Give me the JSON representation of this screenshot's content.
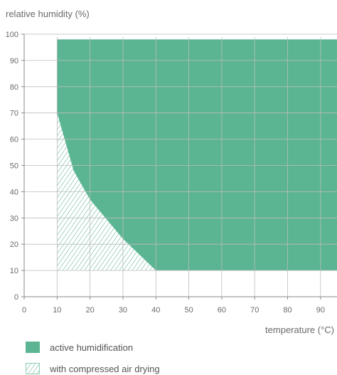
{
  "chart_data": {
    "type": "area",
    "ylabel": "relative humidity (%)",
    "xlabel": "temperature (°C)",
    "xlim": [
      0,
      95
    ],
    "ylim": [
      0,
      100
    ],
    "x_ticks": [
      0,
      10,
      20,
      30,
      40,
      50,
      60,
      70,
      80,
      90
    ],
    "y_ticks": [
      0,
      10,
      20,
      30,
      40,
      50,
      60,
      70,
      80,
      90,
      100
    ],
    "grid": true,
    "series": [
      {
        "name": "active humidification",
        "fill": "solid",
        "color": "#5bb592",
        "polygon": [
          [
            10,
            70
          ],
          [
            15,
            48
          ],
          [
            20,
            37
          ],
          [
            30,
            22
          ],
          [
            40,
            10
          ],
          [
            95,
            10
          ],
          [
            95,
            98
          ],
          [
            10,
            98
          ]
        ]
      },
      {
        "name": "with compressed air drying",
        "fill": "hatched",
        "color": "#5bb592",
        "polygon": [
          [
            10,
            10
          ],
          [
            10,
            70
          ],
          [
            15,
            48
          ],
          [
            20,
            37
          ],
          [
            30,
            22
          ],
          [
            40,
            10
          ]
        ]
      }
    ],
    "legend_position": "bottom-left"
  }
}
